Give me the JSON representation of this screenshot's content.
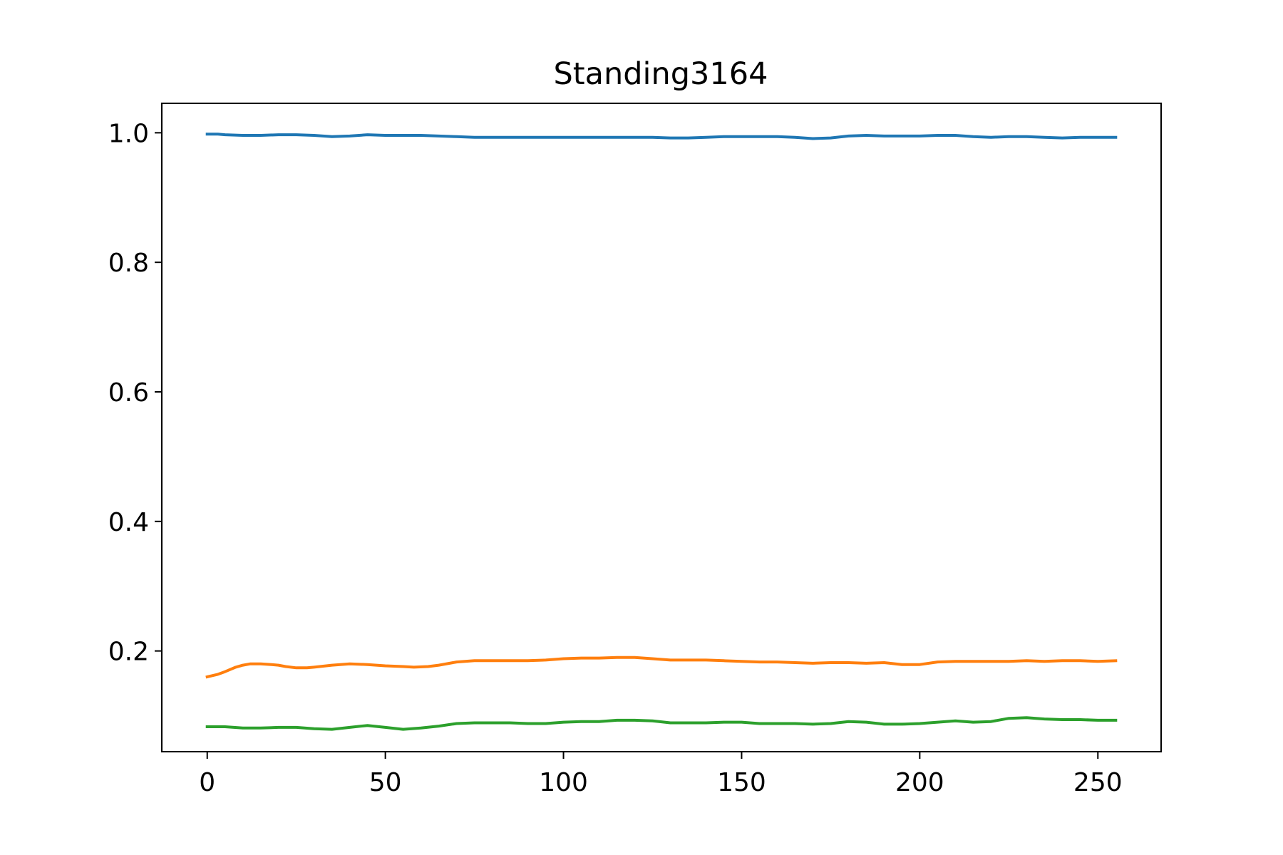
{
  "chart_data": {
    "type": "line",
    "title": "Standing3164",
    "xlabel": "",
    "ylabel": "",
    "xlim": [
      -12.75,
      267.75
    ],
    "ylim": [
      0.0445,
      1.0455
    ],
    "xticks": [
      0,
      50,
      100,
      150,
      200,
      250
    ],
    "xtick_labels": [
      "0",
      "50",
      "100",
      "150",
      "200",
      "250"
    ],
    "yticks": [
      0.2,
      0.4,
      0.6,
      0.8,
      1.0
    ],
    "ytick_labels": [
      "0.2",
      "0.4",
      "0.6",
      "0.8",
      "1.0"
    ],
    "grid": false,
    "legend": "none",
    "series": [
      {
        "color": "#1f77b4",
        "x": [
          0,
          3,
          5,
          10,
          15,
          20,
          25,
          30,
          35,
          40,
          45,
          50,
          55,
          60,
          65,
          70,
          75,
          80,
          90,
          100,
          110,
          120,
          125,
          130,
          135,
          140,
          145,
          150,
          155,
          160,
          165,
          170,
          175,
          180,
          185,
          190,
          195,
          200,
          205,
          210,
          215,
          220,
          225,
          230,
          235,
          240,
          245,
          250,
          255
        ],
        "y": [
          0.998,
          0.998,
          0.997,
          0.996,
          0.996,
          0.997,
          0.997,
          0.996,
          0.994,
          0.995,
          0.997,
          0.996,
          0.996,
          0.996,
          0.995,
          0.994,
          0.993,
          0.993,
          0.993,
          0.993,
          0.993,
          0.993,
          0.993,
          0.992,
          0.992,
          0.993,
          0.994,
          0.994,
          0.994,
          0.994,
          0.993,
          0.991,
          0.992,
          0.995,
          0.996,
          0.995,
          0.995,
          0.995,
          0.996,
          0.996,
          0.994,
          0.993,
          0.994,
          0.994,
          0.993,
          0.992,
          0.993,
          0.993,
          0.993
        ]
      },
      {
        "color": "#ff7f0e",
        "x": [
          0,
          3,
          5,
          8,
          10,
          12,
          15,
          18,
          20,
          22,
          25,
          28,
          30,
          35,
          40,
          45,
          50,
          55,
          58,
          62,
          65,
          70,
          75,
          80,
          85,
          90,
          95,
          100,
          105,
          110,
          115,
          120,
          125,
          130,
          135,
          140,
          145,
          150,
          155,
          160,
          165,
          170,
          175,
          180,
          185,
          190,
          195,
          200,
          205,
          210,
          215,
          220,
          225,
          230,
          235,
          240,
          245,
          250,
          255
        ],
        "y": [
          0.16,
          0.164,
          0.168,
          0.175,
          0.178,
          0.18,
          0.18,
          0.179,
          0.178,
          0.176,
          0.174,
          0.174,
          0.175,
          0.178,
          0.18,
          0.179,
          0.177,
          0.176,
          0.175,
          0.176,
          0.178,
          0.183,
          0.185,
          0.185,
          0.185,
          0.185,
          0.186,
          0.188,
          0.189,
          0.189,
          0.19,
          0.19,
          0.188,
          0.186,
          0.186,
          0.186,
          0.185,
          0.184,
          0.183,
          0.183,
          0.182,
          0.181,
          0.182,
          0.182,
          0.181,
          0.182,
          0.179,
          0.179,
          0.183,
          0.184,
          0.184,
          0.184,
          0.184,
          0.185,
          0.184,
          0.185,
          0.185,
          0.184,
          0.185
        ]
      },
      {
        "color": "#2ca02c",
        "x": [
          0,
          5,
          10,
          15,
          20,
          25,
          30,
          35,
          40,
          45,
          50,
          55,
          60,
          65,
          70,
          75,
          80,
          85,
          90,
          95,
          100,
          105,
          110,
          115,
          120,
          125,
          130,
          135,
          140,
          145,
          150,
          155,
          160,
          165,
          170,
          175,
          180,
          185,
          190,
          195,
          200,
          205,
          210,
          215,
          220,
          225,
          230,
          235,
          240,
          245,
          250,
          255
        ],
        "y": [
          0.083,
          0.083,
          0.081,
          0.081,
          0.082,
          0.082,
          0.08,
          0.079,
          0.082,
          0.085,
          0.082,
          0.079,
          0.081,
          0.084,
          0.088,
          0.089,
          0.089,
          0.089,
          0.088,
          0.088,
          0.09,
          0.091,
          0.091,
          0.093,
          0.093,
          0.092,
          0.089,
          0.089,
          0.089,
          0.09,
          0.09,
          0.088,
          0.088,
          0.088,
          0.087,
          0.088,
          0.091,
          0.09,
          0.087,
          0.087,
          0.088,
          0.09,
          0.092,
          0.09,
          0.091,
          0.096,
          0.097,
          0.095,
          0.094,
          0.094,
          0.093,
          0.093
        ]
      }
    ]
  }
}
